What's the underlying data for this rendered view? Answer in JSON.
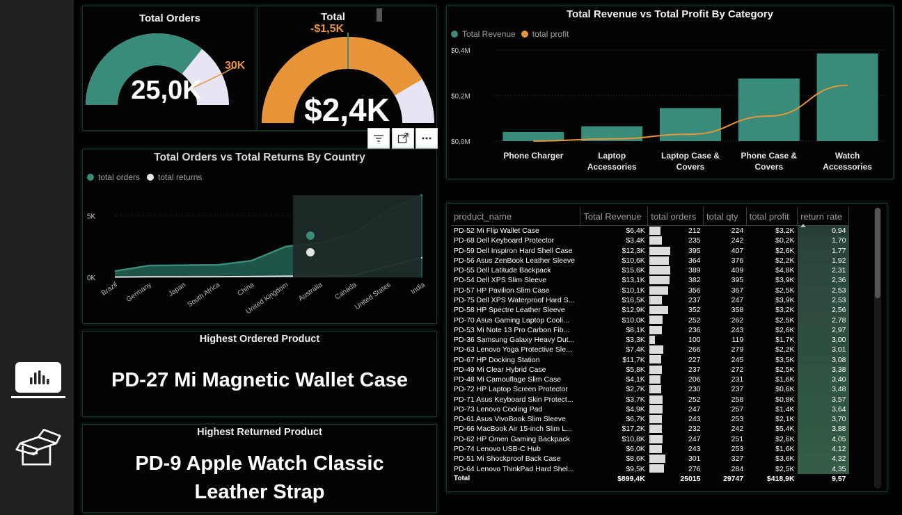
{
  "gauge_orders": {
    "title": "Total Orders",
    "value": "25,0K",
    "target_label": "30K",
    "value_num": 25.0,
    "target_num": 30.0,
    "max_num": 35.0
  },
  "gauge_total": {
    "title": "Total",
    "value": "$2,4K",
    "target_label": "-$1,5K",
    "value_num": 2.4,
    "fill_fraction": 0.83,
    "target_fraction": 0.5
  },
  "visual_toolbar": {
    "filter_icon": "filter-icon",
    "focus_icon": "focus-mode-icon",
    "more_icon": "more-options-icon"
  },
  "revenue_chart": {
    "chart_data": {
      "type": "bar",
      "title": "Total Revenue vs Total Profit By Category",
      "categories": [
        "Phone Charger",
        "Laptop Accessories",
        "Laptop Case & Covers",
        "Phone Case & Covers",
        "Watch Accessories"
      ],
      "category_lines": [
        [
          "Phone Charger"
        ],
        [
          "Laptop",
          "Accessories"
        ],
        [
          "Laptop Case &",
          "Covers"
        ],
        [
          "Phone Case &",
          "Covers"
        ],
        [
          "Watch",
          "Accessories"
        ]
      ],
      "series": [
        {
          "name": "Total Revenue",
          "kind": "bar",
          "color": "#3a8c7a",
          "values": [
            0.04,
            0.065,
            0.145,
            0.275,
            0.385
          ]
        },
        {
          "name": "total profit",
          "kind": "line",
          "color": "#e8953a",
          "values": [
            0.0,
            0.01,
            0.03,
            0.11,
            0.245
          ]
        }
      ],
      "ylim": [
        0,
        0.4
      ],
      "yticks": [
        "$0,0M",
        "$0,2M",
        "$0,4M"
      ],
      "ytick_values": [
        0,
        0.2,
        0.4
      ],
      "legend_position": "top-left",
      "grid": true
    }
  },
  "country_chart": {
    "chart_data": {
      "type": "area",
      "title": "Total Orders vs Total Returns By Country",
      "categories": [
        "Brazil",
        "Germany",
        "Japan",
        "South Africa",
        "China",
        "United Kingdom",
        "Australia",
        "Canada",
        "United States",
        "India"
      ],
      "series": [
        {
          "name": "total orders",
          "color": "#3a8c7a",
          "values": [
            500,
            950,
            980,
            1000,
            1350,
            2500,
            2800,
            3600,
            5500,
            6700
          ]
        },
        {
          "name": "total returns",
          "color": "#e6e6e6",
          "values": [
            20,
            40,
            45,
            50,
            60,
            90,
            100,
            150,
            900,
            1600
          ]
        }
      ],
      "ylim": [
        0,
        7000
      ],
      "yticks": [
        "0K",
        "5K"
      ],
      "ytick_values": [
        0,
        5000
      ],
      "legend_position": "top-left",
      "grid": true
    }
  },
  "highest_ordered": {
    "title": "Highest Ordered Product",
    "value": "PD-27  Mi Magnetic Wallet Case"
  },
  "highest_returned": {
    "title": "Highest Returned Product",
    "value_line1": "PD-9  Apple Watch Classic",
    "value_line2": "Leather Strap"
  },
  "table": {
    "headers": [
      "product_name",
      "Total Revenue",
      "total orders",
      "total qty",
      "total profit",
      "return rate"
    ],
    "sort_column": "return rate",
    "orders_max": 395,
    "rows": [
      {
        "name": "PD-52  Mi Flip Wallet Case",
        "revenue": "$6,4K",
        "orders": 212,
        "qty": 224,
        "profit": "$3,2K",
        "rate": "0,94"
      },
      {
        "name": "PD-68  Dell Keyboard Protector",
        "revenue": "$3,4K",
        "orders": 235,
        "qty": 242,
        "profit": "$0,2K",
        "rate": "1,70"
      },
      {
        "name": "PD-59  Dell Inspiron Hard Shell Case",
        "revenue": "$12,3K",
        "orders": 395,
        "qty": 407,
        "profit": "$2,6K",
        "rate": "1,77"
      },
      {
        "name": "PD-56  Asus ZenBook Leather Sleeve",
        "revenue": "$10,6K",
        "orders": 364,
        "qty": 376,
        "profit": "$2,2K",
        "rate": "1,92"
      },
      {
        "name": "PD-55  Dell Latitude Backpack",
        "revenue": "$15,6K",
        "orders": 389,
        "qty": 409,
        "profit": "$4,8K",
        "rate": "2,31"
      },
      {
        "name": "PD-54  Dell XPS Slim Sleeve",
        "revenue": "$13,1K",
        "orders": 382,
        "qty": 395,
        "profit": "$3,9K",
        "rate": "2,36"
      },
      {
        "name": "PD-57  HP Pavilion Slim Case",
        "revenue": "$10,1K",
        "orders": 356,
        "qty": 367,
        "profit": "$2,5K",
        "rate": "2,53"
      },
      {
        "name": "PD-75  Dell XPS Waterproof Hard S...",
        "revenue": "$16,5K",
        "orders": 237,
        "qty": 247,
        "profit": "$3,9K",
        "rate": "2,53"
      },
      {
        "name": "PD-58  HP Spectre Leather Sleeve",
        "revenue": "$12,9K",
        "orders": 352,
        "qty": 358,
        "profit": "$3,2K",
        "rate": "2,56"
      },
      {
        "name": "PD-70  Asus Gaming Laptop Cooli...",
        "revenue": "$10,0K",
        "orders": 252,
        "qty": 262,
        "profit": "$2,5K",
        "rate": "2,78"
      },
      {
        "name": "PD-53  Mi Note 13 Pro Carbon Fib...",
        "revenue": "$8,1K",
        "orders": 236,
        "qty": 243,
        "profit": "$2,6K",
        "rate": "2,97"
      },
      {
        "name": "PD-36  Samsung Galaxy Heavy Dut...",
        "revenue": "$3,3K",
        "orders": 100,
        "qty": 119,
        "profit": "$1,7K",
        "rate": "3,00"
      },
      {
        "name": "PD-63  Lenovo Yoga Protective Sle...",
        "revenue": "$7,4K",
        "orders": 266,
        "qty": 279,
        "profit": "$2,2K",
        "rate": "3,01"
      },
      {
        "name": "PD-67  HP Docking Station",
        "revenue": "$11,7K",
        "orders": 227,
        "qty": 245,
        "profit": "$3,5K",
        "rate": "3,08"
      },
      {
        "name": "PD-49  Mi Clear Hybrid Case",
        "revenue": "$5,8K",
        "orders": 237,
        "qty": 272,
        "profit": "$2,5K",
        "rate": "3,38"
      },
      {
        "name": "PD-48  Mi Camouflage Slim Case",
        "revenue": "$4,1K",
        "orders": 206,
        "qty": 231,
        "profit": "$1,6K",
        "rate": "3,40"
      },
      {
        "name": "PD-72  HP Laptop Screen Protector",
        "revenue": "$2,7K",
        "orders": 230,
        "qty": 237,
        "profit": "$0,6K",
        "rate": "3,48"
      },
      {
        "name": "PD-71  Asus Keyboard Skin Protect...",
        "revenue": "$3,7K",
        "orders": 252,
        "qty": 258,
        "profit": "$0,8K",
        "rate": "3,57"
      },
      {
        "name": "PD-73  Lenovo Cooling Pad",
        "revenue": "$4,9K",
        "orders": 247,
        "qty": 257,
        "profit": "$1,4K",
        "rate": "3,64"
      },
      {
        "name": "PD-61  Asus VivoBook Slim Sleeve",
        "revenue": "$6,7K",
        "orders": 243,
        "qty": 253,
        "profit": "$2,1K",
        "rate": "3,70"
      },
      {
        "name": "PD-66  MacBook Air 15-inch Slim L...",
        "revenue": "$17,2K",
        "orders": 232,
        "qty": 242,
        "profit": "$5,4K",
        "rate": "3,88"
      },
      {
        "name": "PD-62  HP Omen Gaming Backpack",
        "revenue": "$10,8K",
        "orders": 247,
        "qty": 251,
        "profit": "$2,6K",
        "rate": "4,05"
      },
      {
        "name": "PD-74  Lenovo USB-C Hub",
        "revenue": "$6,0K",
        "orders": 243,
        "qty": 253,
        "profit": "$1,6K",
        "rate": "4,12"
      },
      {
        "name": "PD-51  Mi Shockproof Back Case",
        "revenue": "$8,6K",
        "orders": 301,
        "qty": 327,
        "profit": "$3,6K",
        "rate": "4,32"
      },
      {
        "name": "PD-64  Lenovo ThinkPad Hard Shel...",
        "revenue": "$9,5K",
        "orders": 276,
        "qty": 284,
        "profit": "$2,5K",
        "rate": "4,35"
      }
    ],
    "total": {
      "label": "Total",
      "revenue": "$899,4K",
      "orders": "25015",
      "qty": "29747",
      "profit": "$418,9K",
      "rate": "9,57"
    }
  },
  "nav": {
    "items": [
      {
        "icon": "bar-chart-icon",
        "active": true
      },
      {
        "icon": "open-box-icon",
        "active": false
      }
    ]
  }
}
